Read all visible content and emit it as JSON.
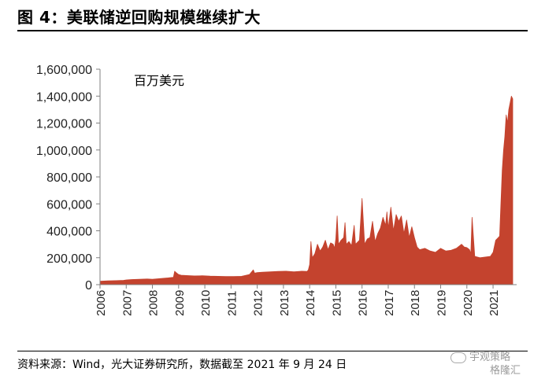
{
  "figure": {
    "title": "图 4：美联储逆回购规模继续扩大",
    "source": "资料来源：Wind，光大证券研究所，数据截至 2021 年 9 月 24 日",
    "watermark": "宇观策略",
    "watermark2": "格隆汇"
  },
  "chart_data": {
    "type": "area",
    "title": "",
    "unit_label": "百万美元",
    "xlabel": "",
    "ylabel": "",
    "color": "#C4432E",
    "ylim": [
      0,
      1600000
    ],
    "yticks": [
      0,
      200000,
      400000,
      600000,
      800000,
      1000000,
      1200000,
      1400000,
      1600000
    ],
    "ytick_labels": [
      "0",
      "200,000",
      "400,000",
      "600,000",
      "800,000",
      "1,000,000",
      "1,200,000",
      "1,400,000",
      "1,600,000"
    ],
    "xlim": [
      2006,
      2021.9
    ],
    "xticks": [
      "2006",
      "2007",
      "2008",
      "2009",
      "2010",
      "2011",
      "2012",
      "2013",
      "2014",
      "2015",
      "2016",
      "2017",
      "2018",
      "2019",
      "2020",
      "2021"
    ],
    "grid": false,
    "legend": "none",
    "series": [
      {
        "x": [
          2006.0,
          2006.3,
          2006.6,
          2006.9,
          2007.0,
          2007.2,
          2007.5,
          2007.8,
          2008.0,
          2008.3,
          2008.6,
          2008.8,
          2008.85,
          2008.9,
          2009.0,
          2009.1,
          2009.3,
          2009.6,
          2009.9,
          2010.2,
          2010.5,
          2010.8,
          2011.1,
          2011.4,
          2011.7,
          2011.85,
          2011.9,
          2012.0,
          2012.2,
          2012.5,
          2012.8,
          2013.1,
          2013.4,
          2013.7,
          2013.9,
          2013.95,
          2014.0,
          2014.05,
          2014.1,
          2014.2,
          2014.3,
          2014.4,
          2014.5,
          2014.6,
          2014.7,
          2014.8,
          2014.9,
          2014.95,
          2015.0,
          2015.05,
          2015.1,
          2015.2,
          2015.3,
          2015.35,
          2015.4,
          2015.5,
          2015.6,
          2015.7,
          2015.75,
          2015.8,
          2015.9,
          2016.0,
          2016.1,
          2016.2,
          2016.3,
          2016.4,
          2016.5,
          2016.6,
          2016.7,
          2016.8,
          2016.9,
          2016.95,
          2017.0,
          2017.1,
          2017.2,
          2017.3,
          2017.4,
          2017.5,
          2017.6,
          2017.7,
          2017.8,
          2017.9,
          2018.0,
          2018.1,
          2018.2,
          2018.4,
          2018.6,
          2018.8,
          2019.0,
          2019.2,
          2019.4,
          2019.6,
          2019.8,
          2019.9,
          2020.0,
          2020.1,
          2020.15,
          2020.2,
          2020.3,
          2020.5,
          2020.7,
          2020.9,
          2021.0,
          2021.1,
          2021.2,
          2021.25,
          2021.3,
          2021.35,
          2021.4,
          2021.45,
          2021.5,
          2021.55,
          2021.6,
          2021.65,
          2021.7,
          2021.75
        ],
        "y": [
          25000,
          28000,
          30000,
          32000,
          35000,
          38000,
          40000,
          42000,
          40000,
          45000,
          50000,
          55000,
          100000,
          90000,
          75000,
          70000,
          68000,
          65000,
          66000,
          63000,
          62000,
          60000,
          60000,
          62000,
          75000,
          110000,
          85000,
          90000,
          92000,
          95000,
          98000,
          100000,
          95000,
          100000,
          98000,
          110000,
          150000,
          320000,
          200000,
          230000,
          300000,
          250000,
          280000,
          330000,
          260000,
          310000,
          300000,
          270000,
          340000,
          510000,
          300000,
          330000,
          350000,
          460000,
          300000,
          320000,
          290000,
          440000,
          300000,
          310000,
          330000,
          640000,
          300000,
          340000,
          350000,
          470000,
          320000,
          380000,
          420000,
          500000,
          440000,
          540000,
          420000,
          575000,
          400000,
          520000,
          470000,
          510000,
          380000,
          480000,
          350000,
          430000,
          350000,
          280000,
          260000,
          270000,
          250000,
          240000,
          270000,
          250000,
          255000,
          270000,
          300000,
          280000,
          275000,
          260000,
          230000,
          500000,
          210000,
          200000,
          205000,
          210000,
          240000,
          330000,
          350000,
          360000,
          600000,
          850000,
          1000000,
          1100000,
          1260000,
          1200000,
          1300000,
          1350000,
          1400000,
          1380000
        ]
      }
    ]
  }
}
